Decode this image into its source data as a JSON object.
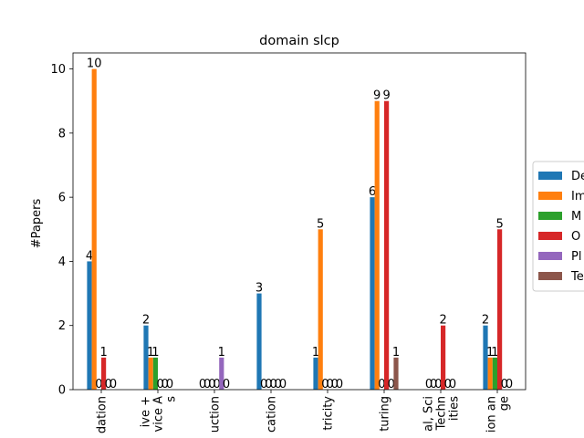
{
  "chart_data": {
    "type": "bar",
    "title": "domain slcp",
    "xlabel": "",
    "ylabel": "#Papers",
    "ylim": [
      0,
      10.5
    ],
    "yticks": [
      0,
      2,
      4,
      6,
      8,
      10
    ],
    "grid": false,
    "legend_position": "right",
    "categories": [
      "dation",
      "ive +\nvice A\ns",
      "uction",
      "cation",
      "tricity",
      "turing",
      "al, Sci\nTechn\nities",
      "ion an\nge"
    ],
    "series": [
      {
        "name": "De",
        "color": "#1f77b4",
        "values": [
          4,
          2,
          0,
          3,
          1,
          6,
          0,
          2
        ]
      },
      {
        "name": "Im",
        "color": "#ff7f0e",
        "values": [
          10,
          1,
          0,
          0,
          5,
          9,
          0,
          1
        ]
      },
      {
        "name": "M",
        "color": "#2ca02c",
        "values": [
          0,
          1,
          0,
          0,
          0,
          0,
          0,
          1
        ]
      },
      {
        "name": "O",
        "color": "#d62728",
        "values": [
          1,
          0,
          0,
          0,
          0,
          9,
          2,
          5
        ]
      },
      {
        "name": "Pl",
        "color": "#9467bd",
        "values": [
          0,
          0,
          1,
          0,
          0,
          0,
          0,
          0
        ]
      },
      {
        "name": "Te",
        "color": "#8c564b",
        "values": [
          0,
          0,
          0,
          0,
          0,
          1,
          0,
          0
        ]
      }
    ]
  }
}
